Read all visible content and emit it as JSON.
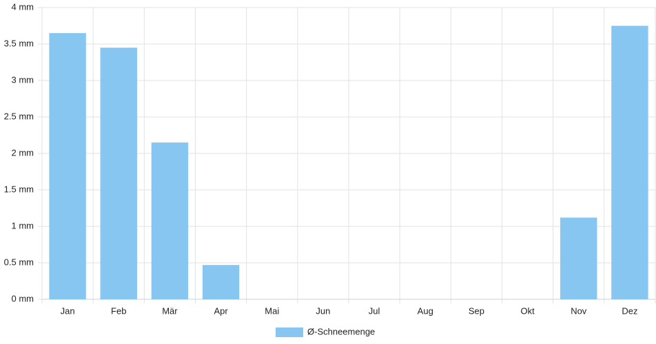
{
  "chart_data": {
    "type": "bar",
    "categories": [
      "Jan",
      "Feb",
      "Mär",
      "Apr",
      "Mai",
      "Jun",
      "Jul",
      "Aug",
      "Sep",
      "Okt",
      "Nov",
      "Dez"
    ],
    "series": [
      {
        "name": "Ø-Schneemenge",
        "color": "#88c6f2",
        "values": [
          3.65,
          3.45,
          2.15,
          0.47,
          0,
          0,
          0,
          0,
          0,
          0,
          1.12,
          3.75
        ]
      }
    ],
    "ylim": [
      0,
      4
    ],
    "yticks": [
      {
        "value": 0,
        "label": "0 mm"
      },
      {
        "value": 0.5,
        "label": "0.5 mm"
      },
      {
        "value": 1,
        "label": "1 mm"
      },
      {
        "value": 1.5,
        "label": "1.5 mm"
      },
      {
        "value": 2,
        "label": "2 mm"
      },
      {
        "value": 2.5,
        "label": "2.5 mm"
      },
      {
        "value": 3,
        "label": "3 mm"
      },
      {
        "value": 3.5,
        "label": "3.5 mm"
      },
      {
        "value": 4,
        "label": "4 mm"
      }
    ],
    "grid": true,
    "legend": "bottom"
  }
}
